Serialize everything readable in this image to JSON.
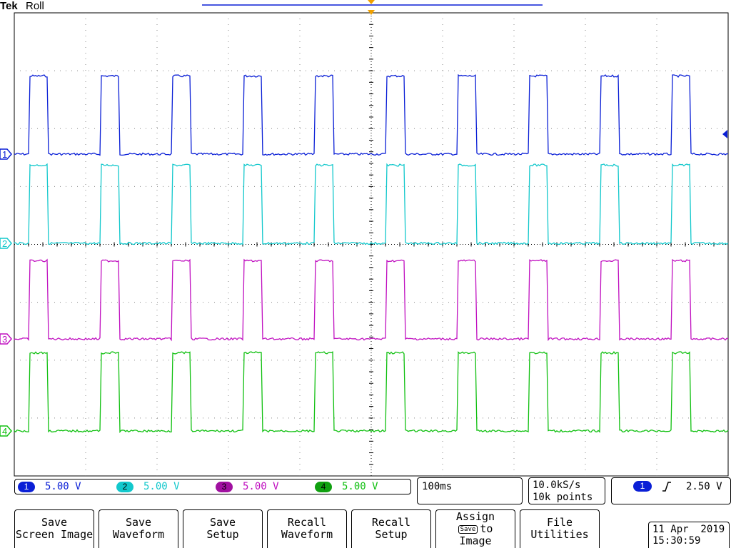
{
  "header": {
    "brand": "Tek",
    "mode": "Roll"
  },
  "channels": [
    {
      "id": "1",
      "color": "#0a1fd6",
      "scale": "5.00 V"
    },
    {
      "id": "2",
      "color": "#12c8cc",
      "scale": "5.00 V"
    },
    {
      "id": "3",
      "color": "#c010c0",
      "scale": "5.00 V"
    },
    {
      "id": "4",
      "color": "#10c010",
      "scale": "5.00 V"
    }
  ],
  "timebase": "100ms",
  "acquisition": {
    "rate": "10.0kS/s",
    "points": "10k points"
  },
  "trigger": {
    "source": "1",
    "slope_icon": "rising-edge-icon",
    "level": "2.50 V"
  },
  "datetime": {
    "date": "11 Apr  2019",
    "time": "15:30:59"
  },
  "softkeys": [
    {
      "line1": "Save",
      "line2": "Screen Image"
    },
    {
      "line1": "Save",
      "line2": "Waveform"
    },
    {
      "line1": "Save",
      "line2": "Setup"
    },
    {
      "line1": "Recall",
      "line2": "Waveform"
    },
    {
      "line1": "Recall",
      "line2": "Setup"
    },
    {
      "line1": "Assign",
      "chip": "Save",
      "line2": "to",
      "line3": "Image"
    },
    {
      "line1": "File",
      "line2": "Utilities"
    }
  ],
  "waveforms": {
    "period_s": 0.1,
    "duty": 0.25,
    "high_div": 1.35,
    "record_s": 1.0
  }
}
